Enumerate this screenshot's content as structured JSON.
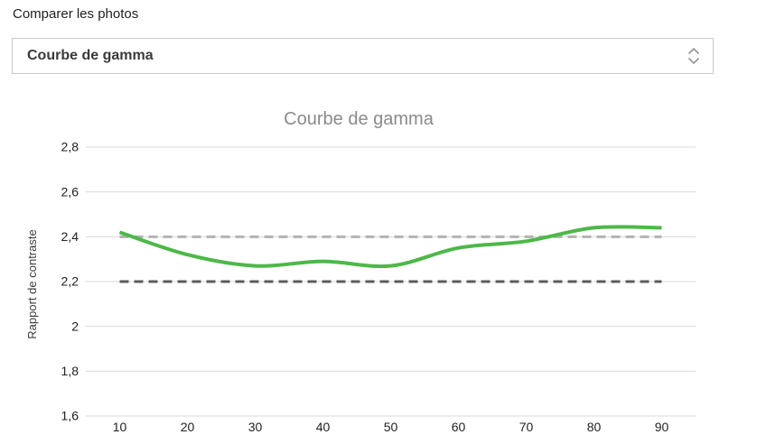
{
  "header": {
    "label": "Comparer les photos",
    "select": {
      "value": "Courbe de gamma",
      "icon": "unfold-more-icon"
    }
  },
  "colors": {
    "curve_green": "#4db848",
    "reference_upper_gray": "#b3b3b3",
    "reference_lower_gray": "#5c5c5c",
    "gridline": "#d9d9d9",
    "title_gray": "#8a8a8a",
    "tick_text": "#222222",
    "axis_title_text": "#3c3c3c"
  },
  "chart_data": {
    "type": "line",
    "title": "Courbe de gamma",
    "xlabel": "",
    "ylabel": "Rapport de contraste",
    "xlim": [
      5,
      95
    ],
    "ylim": [
      1.6,
      2.8
    ],
    "grid": "horizontal",
    "legend": "none",
    "x_ticks": [
      {
        "v": 10,
        "label": "10"
      },
      {
        "v": 20,
        "label": "20"
      },
      {
        "v": 30,
        "label": "30"
      },
      {
        "v": 40,
        "label": "40"
      },
      {
        "v": 50,
        "label": "50"
      },
      {
        "v": 60,
        "label": "60"
      },
      {
        "v": 70,
        "label": "70"
      },
      {
        "v": 80,
        "label": "80"
      },
      {
        "v": 90,
        "label": "90"
      }
    ],
    "y_ticks": [
      {
        "v": 1.6,
        "label": "1,6"
      },
      {
        "v": 1.8,
        "label": "1,8"
      },
      {
        "v": 2.0,
        "label": "2"
      },
      {
        "v": 2.2,
        "label": "2,2"
      },
      {
        "v": 2.4,
        "label": "2,4"
      },
      {
        "v": 2.6,
        "label": "2,6"
      },
      {
        "v": 2.8,
        "label": "2,8"
      }
    ],
    "series": [
      {
        "id": "reference_upper",
        "style": "dashed",
        "color": "#b3b3b3",
        "line_width": 3,
        "x": [
          10,
          90
        ],
        "y": [
          2.4,
          2.4
        ]
      },
      {
        "id": "reference_lower",
        "style": "dashed",
        "color": "#5c5c5c",
        "line_width": 3,
        "x": [
          10,
          90
        ],
        "y": [
          2.2,
          2.2
        ]
      },
      {
        "id": "gamma_curve",
        "style": "smooth",
        "color": "#4db848",
        "line_width": 4,
        "x": [
          10,
          20,
          30,
          40,
          50,
          60,
          70,
          80,
          90
        ],
        "y": [
          2.42,
          2.32,
          2.27,
          2.29,
          2.27,
          2.35,
          2.38,
          2.44,
          2.44
        ]
      }
    ]
  }
}
